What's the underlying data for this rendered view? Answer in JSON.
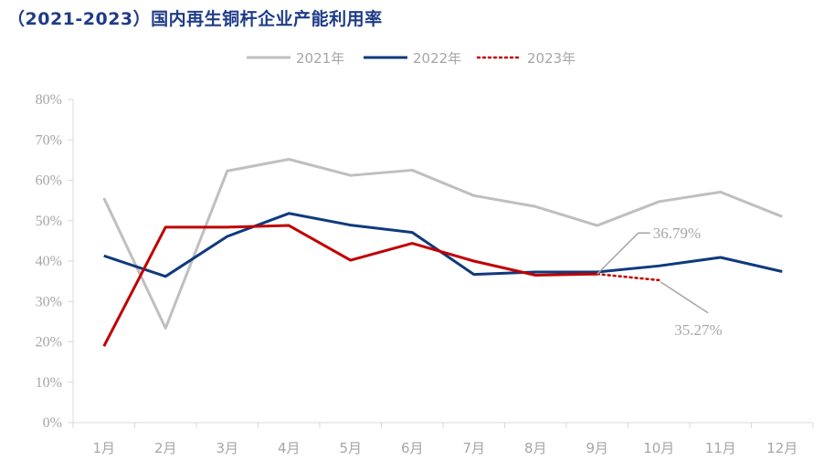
{
  "chart_data": {
    "type": "line",
    "title": "（2021-2023）国内再生铜杆企业产能利用率",
    "categories": [
      "1月",
      "2月",
      "3月",
      "4月",
      "5月",
      "6月",
      "7月",
      "8月",
      "9月",
      "10月",
      "11月",
      "12月"
    ],
    "ylim": [
      0,
      80
    ],
    "yticks": [
      "0%",
      "10%",
      "20%",
      "30%",
      "40%",
      "50%",
      "60%",
      "70%",
      "80%"
    ],
    "legend_position": "top-center",
    "grid": false,
    "series": [
      {
        "name": "2021年",
        "color": "#bfbfbf",
        "style": "solid",
        "values": [
          55.6,
          23.4,
          62.3,
          65.2,
          61.2,
          62.5,
          56.2,
          53.5,
          48.8,
          54.7,
          57.1,
          51.0
        ]
      },
      {
        "name": "2022年",
        "color": "#0f3a7d",
        "style": "solid",
        "values": [
          41.3,
          36.2,
          46.1,
          51.8,
          48.9,
          47.1,
          36.7,
          37.3,
          37.3,
          38.8,
          40.9,
          37.4
        ]
      },
      {
        "name": "2023年",
        "color": "#c00000",
        "style": "dotted",
        "values": [
          18.9,
          48.4,
          48.4,
          48.8,
          40.2,
          44.4,
          40.0,
          36.5,
          36.79,
          35.27,
          null,
          null
        ]
      }
    ],
    "annotations": [
      {
        "text": "36.79%",
        "category": "9月",
        "value": 36.79
      },
      {
        "text": "35.27%",
        "category": "10月",
        "value": 35.27
      }
    ]
  }
}
